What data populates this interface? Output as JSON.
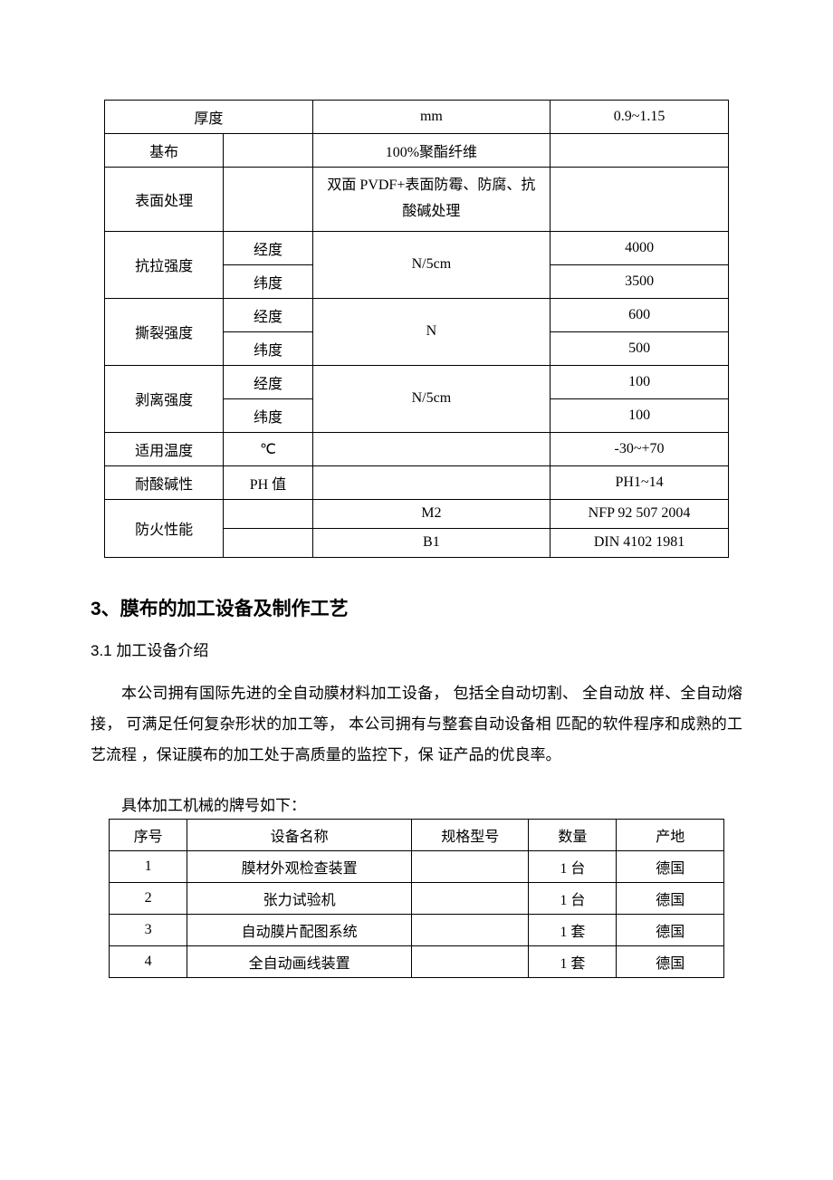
{
  "specTable": {
    "rows": [
      {
        "label": "厚度",
        "sub": null,
        "unit": "mm",
        "value": "0.9~1.15",
        "labelSpan": 2
      },
      {
        "label": "基布",
        "sub": "",
        "unit": "100%聚酯纤维",
        "value": ""
      },
      {
        "label": "表面处理",
        "sub": "",
        "unit": "双面 PVDF+表面防霉、防腐、抗酸碱处理",
        "value": ""
      },
      {
        "groupLabel": "抗拉强度",
        "sub": "经度",
        "unit": "N/5cm",
        "value": "4000",
        "unitSpan": 2
      },
      {
        "sub": "纬度",
        "value": "3500"
      },
      {
        "groupLabel": "撕裂强度",
        "sub": "经度",
        "unit": "N",
        "value": "600",
        "unitSpan": 2
      },
      {
        "sub": "纬度",
        "value": "500"
      },
      {
        "groupLabel": "剥离强度",
        "sub": "经度",
        "unit": "N/5cm",
        "value": "100",
        "unitSpan": 2
      },
      {
        "sub": "纬度",
        "value": "100"
      },
      {
        "label": "适用温度",
        "sub": "℃",
        "unit": "",
        "value": "-30~+70"
      },
      {
        "label": "耐酸碱性",
        "sub": "PH 值",
        "unit": "",
        "value": "PH1~14"
      },
      {
        "groupLabel": "防火性能",
        "sub": "",
        "unit": "M2",
        "value": "NFP 92 507 2004",
        "groupSpan": 2
      },
      {
        "sub": "",
        "unit": "B1",
        "value": "DIN 4102 1981"
      }
    ]
  },
  "heading3": "3、膜布的加工设备及制作工艺",
  "sub31": "3.1  加工设备介绍",
  "paragraph": "本公司拥有国际先进的全自动膜材料加工设备，  包括全自动切割、  全自动放  样、全自动熔接，  可满足任何复杂形状的加工等，  本公司拥有与整套自动设备相 匹配的软件程序和成熟的工艺流程 ，保证膜布的加工处于高质量的监控下，保  证产品的优良率。",
  "equipIntro": "具体加工机械的牌号如下：",
  "equipTable": {
    "headers": [
      "序号",
      "设备名称",
      "规格型号",
      "数量",
      "产地"
    ],
    "rows": [
      [
        "1",
        "膜材外观检查装置",
        "",
        "1 台",
        "德国"
      ],
      [
        "2",
        "张力试验机",
        "",
        "1 台",
        "德国"
      ],
      [
        "3",
        "自动膜片配图系统",
        "",
        "1 套",
        "德国"
      ],
      [
        "4",
        "全自动画线装置",
        "",
        "1 套",
        "德国"
      ]
    ]
  },
  "colors": {
    "text": "#000000",
    "background": "#ffffff",
    "border": "#000000"
  }
}
